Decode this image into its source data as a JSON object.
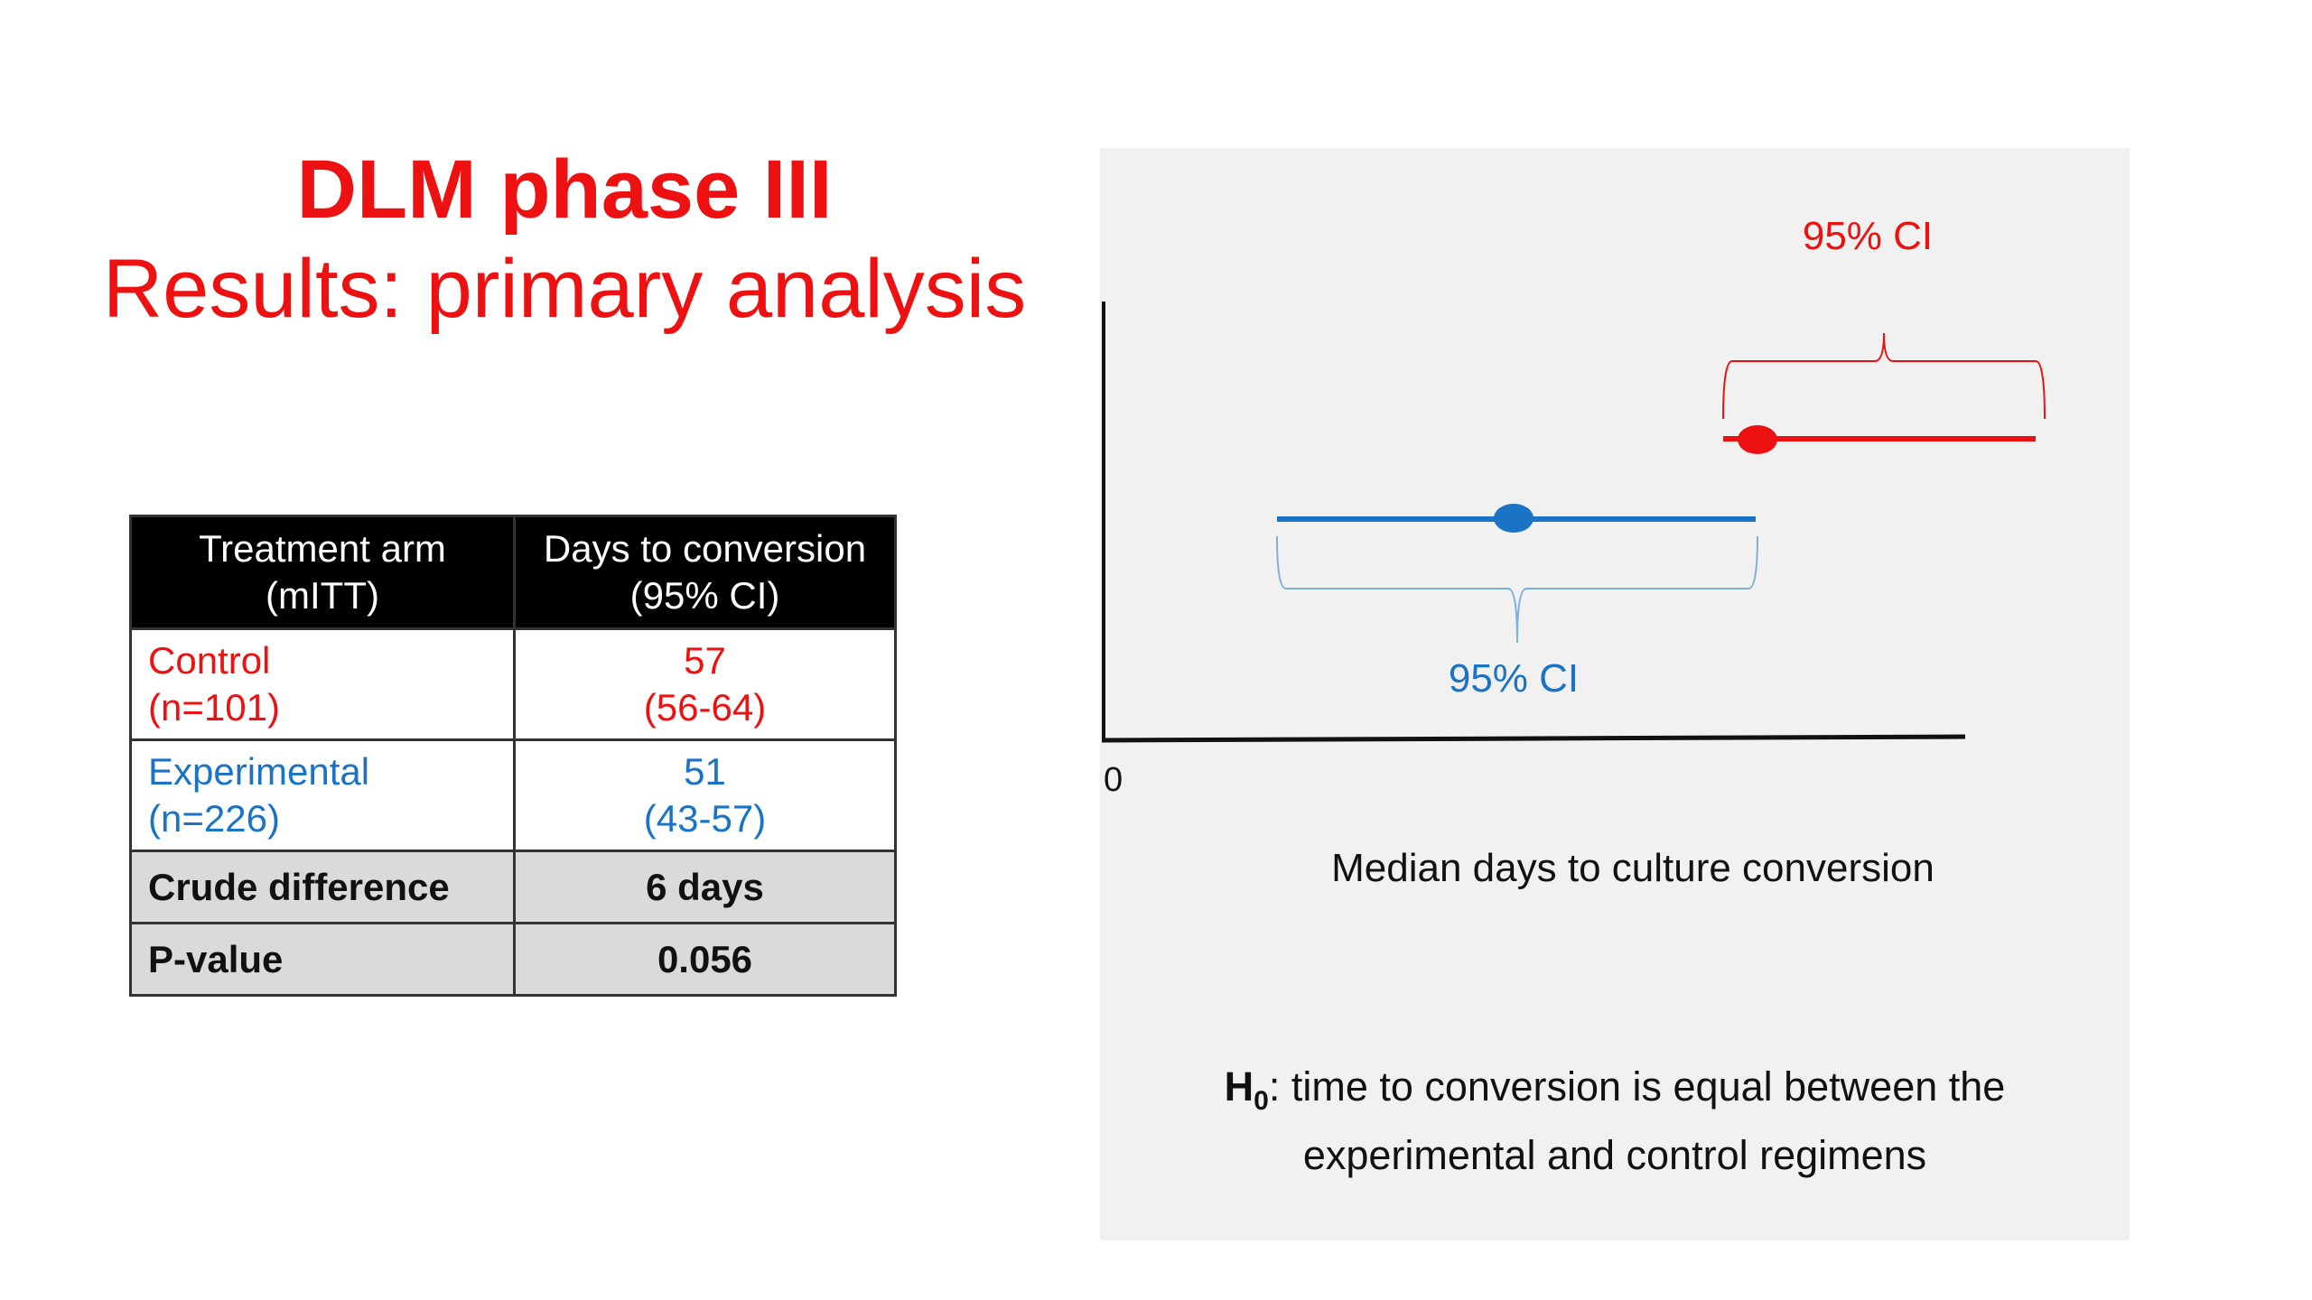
{
  "title": {
    "main": "DLM phase III",
    "sub": "Results: primary analysis"
  },
  "table": {
    "headers": [
      [
        "Treatment arm",
        "(mITT)"
      ],
      [
        "Days to conversion",
        "(95% CI)"
      ]
    ],
    "rows": [
      {
        "arm": "Control",
        "n": "(n=101)",
        "value": "57",
        "ci": "(56-64)",
        "color": "#ee1111"
      },
      {
        "arm": "Experimental",
        "n": "(n=226)",
        "value": "51",
        "ci": "(43-57)",
        "color": "#1a73c4"
      }
    ],
    "summary": [
      {
        "label": "Crude difference",
        "value": "6 days"
      },
      {
        "label": "P-value",
        "value": "0.056"
      }
    ]
  },
  "diagram": {
    "zero_label": "0",
    "axis_label": "Median days to culture conversion",
    "ci_label_control": "95% CI",
    "ci_label_experimental": "95% CI",
    "colors": {
      "control": "#ee1111",
      "experimental": "#1a73c4"
    },
    "hypothesis": {
      "symbol": "H",
      "subscript": "0",
      "text_line1": ": time to conversion is equal between the",
      "text_line2": "experimental and control regimens"
    }
  }
}
